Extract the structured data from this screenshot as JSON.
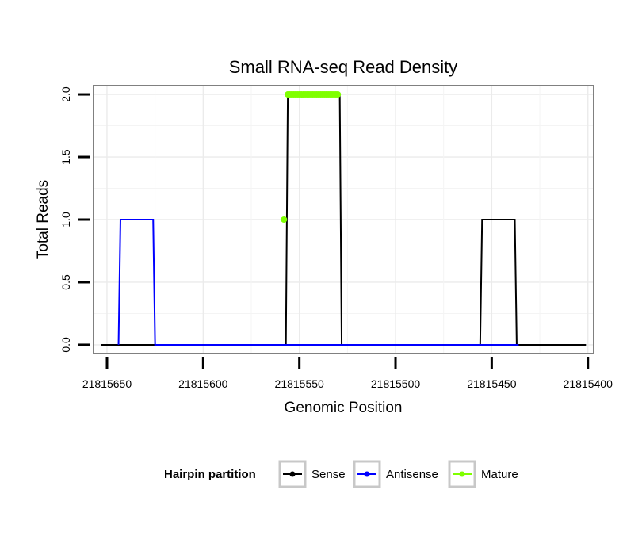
{
  "chart_data": {
    "type": "line",
    "title": "Small RNA-seq Read Density",
    "xlabel": "Genomic Position",
    "ylabel": "Total Reads",
    "xlim": [
      21815657,
      21815397
    ],
    "x_reversed": true,
    "ylim": [
      -0.07,
      2.07
    ],
    "x_ticks": [
      21815650,
      21815600,
      21815550,
      21815500,
      21815450,
      21815400
    ],
    "x_tick_labels": [
      "21815650",
      "21815600",
      "21815550",
      "21815500",
      "21815450",
      "21815400"
    ],
    "y_ticks": [
      0.0,
      0.5,
      1.0,
      1.5,
      2.0
    ],
    "y_tick_labels": [
      "0.0",
      "0.5",
      "1.0",
      "1.5",
      "2.0"
    ],
    "grid": true,
    "legend": {
      "title": "Hairpin partition",
      "position": "bottom",
      "entries": [
        "Sense",
        "Antisense",
        "Mature"
      ]
    },
    "series": [
      {
        "name": "Sense",
        "color": "#000000",
        "marker": "line",
        "x": [
          21815653,
          21815644,
          21815642,
          21815641,
          21815625,
          21815624,
          21815557,
          21815556,
          21815544,
          21815543,
          21815530,
          21815529,
          21815528,
          21815456,
          21815455,
          21815438,
          21815437,
          21815401
        ],
        "values": [
          0,
          0,
          0,
          0,
          0,
          0,
          0,
          2,
          2,
          2,
          2,
          2,
          0,
          0,
          1,
          1,
          0,
          0
        ]
      },
      {
        "name": "Antisense",
        "color": "#0000ff",
        "marker": "line",
        "x": [
          21815644,
          21815643,
          21815626,
          21815625,
          21815544,
          21815529,
          21815437,
          21815436
        ],
        "values": [
          0,
          1,
          1,
          0,
          0,
          0,
          0,
          0
        ]
      },
      {
        "name": "Mature",
        "color": "#7fff00",
        "marker": "points",
        "x": [
          21815558,
          21815556,
          21815555,
          21815554,
          21815553,
          21815552,
          21815551,
          21815550,
          21815549,
          21815548,
          21815547,
          21815546,
          21815545,
          21815544,
          21815543,
          21815542,
          21815541,
          21815540,
          21815539,
          21815538,
          21815537,
          21815536,
          21815535,
          21815534,
          21815533,
          21815532,
          21815531,
          21815530
        ],
        "values": [
          1,
          2,
          2,
          2,
          2,
          2,
          2,
          2,
          2,
          2,
          2,
          2,
          2,
          2,
          2,
          2,
          2,
          2,
          2,
          2,
          2,
          2,
          2,
          2,
          2,
          2,
          2,
          2
        ]
      }
    ]
  }
}
